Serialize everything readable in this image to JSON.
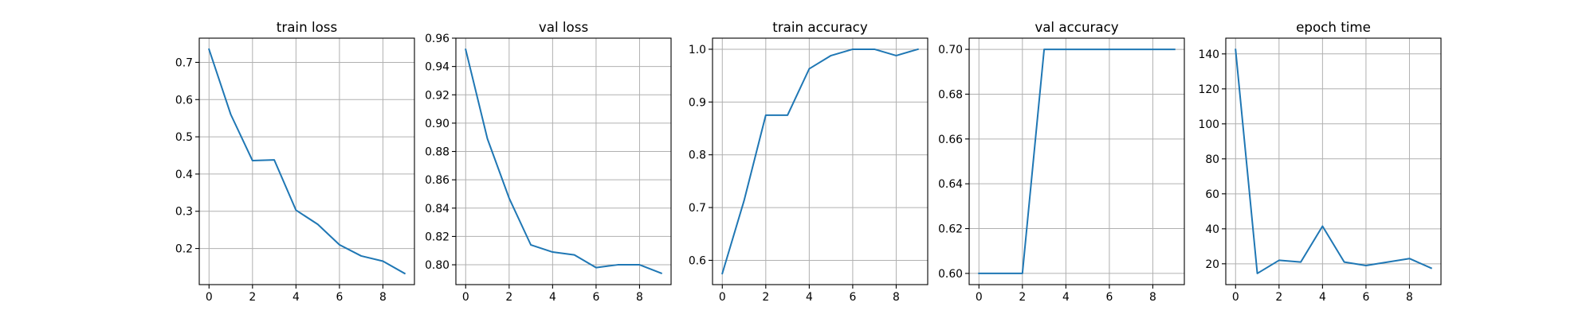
{
  "colors": {
    "series": "#1f77b4",
    "grid": "#b0b0b0",
    "axis": "#000000"
  },
  "chart_data": [
    {
      "type": "line",
      "title": "train loss",
      "xlabel": "",
      "ylabel": "",
      "grid": true,
      "x": [
        0,
        1,
        2,
        3,
        4,
        5,
        6,
        7,
        8,
        9
      ],
      "series": [
        {
          "values": [
            0.735,
            0.56,
            0.436,
            0.438,
            0.303,
            0.265,
            0.21,
            0.18,
            0.166,
            0.133
          ]
        }
      ],
      "xlim": [
        -0.45,
        9.45
      ],
      "ylim": [
        0.103,
        0.765
      ],
      "xticks": [
        0,
        2,
        4,
        6,
        8
      ],
      "yticks": [
        0.2,
        0.3,
        0.4,
        0.5,
        0.6,
        0.7
      ],
      "ytick_labels": [
        "0.2",
        "0.3",
        "0.4",
        "0.5",
        "0.6",
        "0.7"
      ]
    },
    {
      "type": "line",
      "title": "val loss",
      "xlabel": "",
      "ylabel": "",
      "grid": true,
      "x": [
        0,
        1,
        2,
        3,
        4,
        5,
        6,
        7,
        8,
        9
      ],
      "series": [
        {
          "values": [
            0.952,
            0.889,
            0.847,
            0.814,
            0.809,
            0.807,
            0.798,
            0.8,
            0.8,
            0.794
          ]
        }
      ],
      "xlim": [
        -0.45,
        9.45
      ],
      "ylim": [
        0.786,
        0.96
      ],
      "xticks": [
        0,
        2,
        4,
        6,
        8
      ],
      "yticks": [
        0.8,
        0.82,
        0.84,
        0.86,
        0.88,
        0.9,
        0.92,
        0.94,
        0.96
      ],
      "ytick_labels": [
        "0.80",
        "0.82",
        "0.84",
        "0.86",
        "0.88",
        "0.90",
        "0.92",
        "0.94",
        "0.96"
      ]
    },
    {
      "type": "line",
      "title": "train accuracy",
      "xlabel": "",
      "ylabel": "",
      "grid": true,
      "x": [
        0,
        1,
        2,
        3,
        4,
        5,
        6,
        7,
        8,
        9
      ],
      "series": [
        {
          "values": [
            0.575,
            0.713,
            0.875,
            0.875,
            0.963,
            0.988,
            1.0,
            1.0,
            0.988,
            1.0
          ]
        }
      ],
      "xlim": [
        -0.45,
        9.45
      ],
      "ylim": [
        0.554,
        1.021
      ],
      "xticks": [
        0,
        2,
        4,
        6,
        8
      ],
      "yticks": [
        0.6,
        0.7,
        0.8,
        0.9,
        1.0
      ],
      "ytick_labels": [
        "0.6",
        "0.7",
        "0.8",
        "0.9",
        "1.0"
      ]
    },
    {
      "type": "line",
      "title": "val accuracy",
      "xlabel": "",
      "ylabel": "",
      "grid": true,
      "x": [
        0,
        1,
        2,
        3,
        4,
        5,
        6,
        7,
        8,
        9
      ],
      "series": [
        {
          "values": [
            0.6,
            0.6,
            0.6,
            0.7,
            0.7,
            0.7,
            0.7,
            0.7,
            0.7,
            0.7
          ]
        }
      ],
      "xlim": [
        -0.45,
        9.45
      ],
      "ylim": [
        0.595,
        0.705
      ],
      "xticks": [
        0,
        2,
        4,
        6,
        8
      ],
      "yticks": [
        0.6,
        0.62,
        0.64,
        0.66,
        0.68,
        0.7
      ],
      "ytick_labels": [
        "0.60",
        "0.62",
        "0.64",
        "0.66",
        "0.68",
        "0.70"
      ]
    },
    {
      "type": "line",
      "title": "epoch time",
      "xlabel": "",
      "ylabel": "",
      "grid": true,
      "x": [
        0,
        1,
        2,
        3,
        4,
        5,
        6,
        7,
        8,
        9
      ],
      "series": [
        {
          "values": [
            142.5,
            14.5,
            22,
            21,
            41.5,
            21,
            19,
            21,
            23,
            17.5
          ]
        }
      ],
      "xlim": [
        -0.45,
        9.45
      ],
      "ylim": [
        8.1,
        149
      ],
      "xticks": [
        0,
        2,
        4,
        6,
        8
      ],
      "yticks": [
        20,
        40,
        60,
        80,
        100,
        120,
        140
      ],
      "ytick_labels": [
        "20",
        "40",
        "60",
        "80",
        "100",
        "120",
        "140"
      ]
    }
  ]
}
